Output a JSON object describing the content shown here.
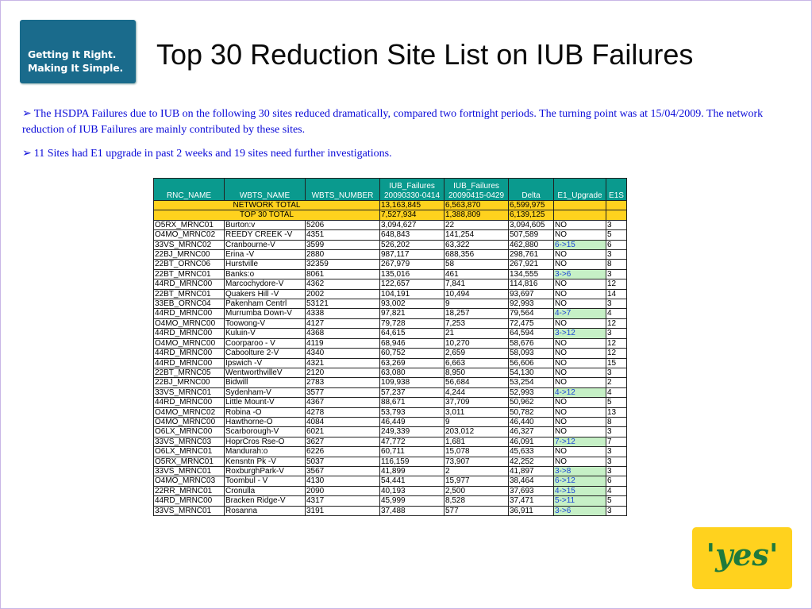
{
  "logo": {
    "line1": "Getting It Right.",
    "line2": "Making It Simple."
  },
  "title": "Top 30 Reduction Site List on IUB Failures",
  "paragraphs": [
    "The HSDPA Failures due to IUB on the following 30 sites reduced dramatically, compared two fortnight periods. The turning point was at 15/04/2009. The network reduction of IUB Failures are mainly contributed by these sites.",
    "11 Sites had E1 upgrade in past 2 weeks and 19 sites need further investigations."
  ],
  "table": {
    "headers": [
      [
        "RNC_NAME"
      ],
      [
        "WBTS_NAME"
      ],
      [
        "WBTS_NUMBER"
      ],
      [
        "IUB_Failures",
        "20090330-0414"
      ],
      [
        "IUB_Failures",
        "20090415-0429"
      ],
      [
        "Delta"
      ],
      [
        "E1_Upgrade"
      ],
      [
        "E1S"
      ]
    ],
    "totals": [
      {
        "label": "NETWORK TOTAL",
        "before": "13,163,845",
        "after": "6,563,870",
        "delta": "6,599,975"
      },
      {
        "label": "TOP 30 TOTAL",
        "before": "7,527,934",
        "after": "1,388,809",
        "delta": "6,139,125"
      }
    ],
    "rows": [
      [
        "O5RX_MRNC01",
        "Burton:v",
        "5206",
        "3,094,627",
        "22",
        "3,094,605",
        "NO",
        "3"
      ],
      [
        "O4MO_MRNC02",
        "REEDY CREEK -V",
        "4351",
        "648,843",
        "141,254",
        "507,589",
        "NO",
        "5"
      ],
      [
        "33VS_MRNC02",
        "Cranbourne-V",
        "3599",
        "526,202",
        "63,322",
        "462,880",
        "6->15",
        "6"
      ],
      [
        "22BJ_MRNC00",
        "Erina -V",
        "2880",
        "987,117",
        "688,356",
        "298,761",
        "NO",
        "3"
      ],
      [
        "22BT_ORNC06",
        "Hurstville",
        "32359",
        "267,979",
        "58",
        "267,921",
        "NO",
        "8"
      ],
      [
        "22BT_MRNC01",
        "Banks:o",
        "8061",
        "135,016",
        "461",
        "134,555",
        "3->6",
        "3"
      ],
      [
        "44RD_MRNC00",
        "Marcochydore-V",
        "4362",
        "122,657",
        "7,841",
        "114,816",
        "NO",
        "12"
      ],
      [
        "22BT_MRNC01",
        "Quakers Hill -V",
        "2002",
        "104,191",
        "10,494",
        "93,697",
        "NO",
        "14"
      ],
      [
        "33EB_ORNC04",
        "Pakenham Centrl",
        "53121",
        "93,002",
        "9",
        "92,993",
        "NO",
        "3"
      ],
      [
        "44RD_MRNC00",
        "Murrumba Down-V",
        "4338",
        "97,821",
        "18,257",
        "79,564",
        "4->7",
        "4"
      ],
      [
        "O4MO_MRNC00",
        "Toowong-V",
        "4127",
        "79,728",
        "7,253",
        "72,475",
        "NO",
        "12"
      ],
      [
        "44RD_MRNC00",
        "Kuluin-V",
        "4368",
        "64,615",
        "21",
        "64,594",
        "3->12",
        "3"
      ],
      [
        "O4MO_MRNC00",
        "Coorparoo - V",
        "4119",
        "68,946",
        "10,270",
        "58,676",
        "NO",
        "12"
      ],
      [
        "44RD_MRNC00",
        "Caboolture 2-V",
        "4340",
        "60,752",
        "2,659",
        "58,093",
        "NO",
        "12"
      ],
      [
        "44RD_MRNC00",
        "Ipswich -V",
        "4321",
        "63,269",
        "6,663",
        "56,606",
        "NO",
        "15"
      ],
      [
        "22BT_MRNC05",
        "WentworthvilleV",
        "2120",
        "63,080",
        "8,950",
        "54,130",
        "NO",
        "3"
      ],
      [
        "22BJ_MRNC00",
        "Bidwill",
        "2783",
        "109,938",
        "56,684",
        "53,254",
        "NO",
        "2"
      ],
      [
        "33VS_MRNC01",
        "Sydenham-V",
        "3577",
        "57,237",
        "4,244",
        "52,993",
        "4->12",
        "4"
      ],
      [
        "44RD_MRNC00",
        "Little Mount-V",
        "4367",
        "88,671",
        "37,709",
        "50,962",
        "NO",
        "5"
      ],
      [
        "O4MO_MRNC02",
        "Robina -O",
        "4278",
        "53,793",
        "3,011",
        "50,782",
        "NO",
        "13"
      ],
      [
        "O4MO_MRNC00",
        "Hawthorne-O",
        "4084",
        "46,449",
        "9",
        "46,440",
        "NO",
        "8"
      ],
      [
        "O6LX_MRNC00",
        "Scarborough-V",
        "6021",
        "249,339",
        "203,012",
        "46,327",
        "NO",
        "3"
      ],
      [
        "33VS_MRNC03",
        "HoprCros Rse-O",
        "3627",
        "47,772",
        "1,681",
        "46,091",
        "7->12",
        "7"
      ],
      [
        "O6LX_MRNC01",
        "Mandurah:o",
        "6226",
        "60,711",
        "15,078",
        "45,633",
        "NO",
        "3"
      ],
      [
        "O5RX_MRNC01",
        "Kensntn Pk -V",
        "5037",
        "116,159",
        "73,907",
        "42,252",
        "NO",
        "3"
      ],
      [
        "33VS_MRNC01",
        "RoxburghPark-V",
        "3567",
        "41,899",
        "2",
        "41,897",
        "3->8",
        "3"
      ],
      [
        "O4MO_MRNC03",
        "Toombul - V",
        "4130",
        "54,441",
        "15,977",
        "38,464",
        "6->12",
        "6"
      ],
      [
        "22RR_MRNC01",
        "Cronulla",
        "2090",
        "40,193",
        "2,500",
        "37,693",
        "4->15",
        "4"
      ],
      [
        "44RD_MRNC00",
        "Bracken Ridge-V",
        "4317",
        "45,999",
        "8,528",
        "37,471",
        "5->11",
        "5"
      ],
      [
        "33VS_MRNC01",
        "Rosanna",
        "3191",
        "37,488",
        "577",
        "36,911",
        "3->6",
        "3"
      ]
    ]
  },
  "brand_logo": "'yes'",
  "colors": {
    "header_bg": "#0a9a8e",
    "total_bg": "#ffd21e",
    "upgrade_text": "#1a46d6",
    "upgrade_bg": "#c6f0c6",
    "text_blue": "#0a0ad8"
  }
}
